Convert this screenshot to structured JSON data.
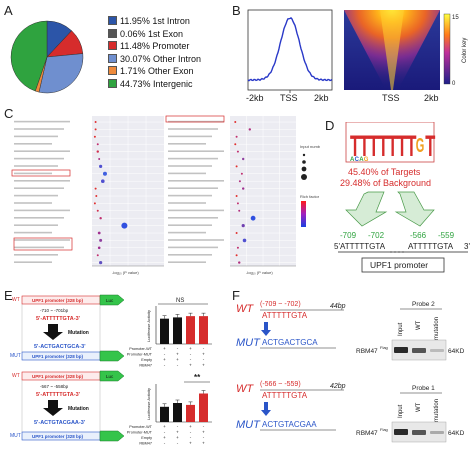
{
  "panels": {
    "a": "A",
    "b": "B",
    "c": "C",
    "d": "D",
    "e": "E",
    "f": "F"
  },
  "panelA": {
    "legend": [
      {
        "pct": "11.95%",
        "label": "1st Intron",
        "color": "#2c55a8"
      },
      {
        "pct": "0.06%",
        "label": "1st Exon",
        "color": "#555555"
      },
      {
        "pct": "11.48%",
        "label": "Promoter",
        "color": "#d62c2c"
      },
      {
        "pct": "30.07%",
        "label": "Other Intron",
        "color": "#6f8fcf"
      },
      {
        "pct": "1.71%",
        "label": "Other Exon",
        "color": "#ee8a3c"
      },
      {
        "pct": "44.73%",
        "label": "Intergenic",
        "color": "#2fa33f"
      }
    ]
  },
  "panelB": {
    "profile_ticks": [
      "-2kb",
      "TSS",
      "2kb"
    ],
    "heatmap_ticks": [
      "TSS",
      "2kb"
    ],
    "colorkey_label": "Color key",
    "colorkey_max": "15",
    "colorkey_min": "0",
    "colors": {
      "low": "#1e1f8a",
      "mid": "#ff7a1a",
      "high": "#ffff40",
      "line": "#2a39c8"
    }
  },
  "panelD": {
    "logo_letters": [
      "T",
      "T",
      "T",
      "T",
      "T",
      "T",
      "T",
      "G",
      "T"
    ],
    "targets_text": "45.40% of Targets",
    "background_text": "29.48% of Background",
    "site1": "-709",
    "site1_end": "-702",
    "site2": "-566",
    "site2_end": "-559",
    "five_prime": "5'",
    "three_prime": "3'",
    "seq_a": "ATTTTTGTA",
    "seq_b": "ATTTTTGTA",
    "promoter_label": "UPF1 promoter"
  },
  "panelE": {
    "top": {
      "wt_box": "UPF1 promoter (328 bp)",
      "coords": "-710 ~ -701bp",
      "wt_seq": "5'-ATTTTTGTA-3'",
      "mutation": "Mutation",
      "mut_seq": "5'-ACTGACTGCA-3'",
      "mut_box": "UPF1 promoter (328 bp)",
      "luc": "Luc",
      "wt_tag": "WT",
      "mut_tag": "MUT",
      "ns": "NS",
      "ylabel": "Luciferase Activity",
      "row_labels": [
        "Promoter-WT",
        "Promoter-MUT",
        "Empty",
        "RBM47"
      ],
      "row_vals": [
        [
          "+",
          "-",
          "+",
          "-"
        ],
        [
          "-",
          "+",
          "-",
          "+"
        ],
        [
          "+",
          "+",
          "-",
          "-"
        ],
        [
          "-",
          "-",
          "+",
          "+"
        ]
      ],
      "bars": [
        1.0,
        1.05,
        1.1,
        1.1
      ],
      "bar_colors": [
        "#111111",
        "#111111",
        "#d62c2c",
        "#d62c2c"
      ],
      "ymax": 1.5
    },
    "bottom": {
      "wt_box": "UPF1 promoter (328 bp)",
      "coords": "-567 ~ -558bp",
      "wt_seq": "5'-ATTTTTGTA-3'",
      "mutation": "Mutation",
      "mut_seq": "5'-ACTGTACGAA-3'",
      "mut_box": "UPF1 promoter (328 bp)",
      "luc": "Luc",
      "wt_tag": "WT",
      "mut_tag": "MUT",
      "sig": "**",
      "ylabel": "Luciferase Activity",
      "row_labels": [
        "Promoter-WT",
        "Promoter-MUT",
        "Empty",
        "RBM47"
      ],
      "row_vals": [
        [
          "+",
          "-",
          "+",
          "-"
        ],
        [
          "-",
          "+",
          "-",
          "+"
        ],
        [
          "+",
          "+",
          "-",
          "-"
        ],
        [
          "-",
          "-",
          "+",
          "+"
        ]
      ],
      "bars": [
        0.8,
        1.0,
        0.9,
        1.5
      ],
      "bar_colors": [
        "#111111",
        "#111111",
        "#d62c2c",
        "#d62c2c"
      ],
      "ymax": 2.0
    }
  },
  "panelF": {
    "top": {
      "wt": "WT",
      "wt_coords": "(-709 ~ -702)",
      "wt_seq": "ATTTTTGTA",
      "length": "44bp",
      "mut": "MUT",
      "mut_seq": "ACTGACTGCA",
      "probe": "Probe 2",
      "lanes": [
        "Input",
        "WT",
        "mutation"
      ],
      "protein": "RBM47",
      "protein_sup": "Flag",
      "kd": "64KD"
    },
    "bottom": {
      "wt": "WT",
      "wt_coords": "(-566 ~ -559)",
      "wt_seq": "ATTTTTGTA",
      "length": "42bp",
      "mut": "MUT",
      "mut_seq": "ACTGTACGAA",
      "probe": "Probe 1",
      "lanes": [
        "Input",
        "WT",
        "mutation"
      ],
      "protein": "RBM47",
      "protein_sup": "Flag",
      "kd": "64KD"
    }
  }
}
